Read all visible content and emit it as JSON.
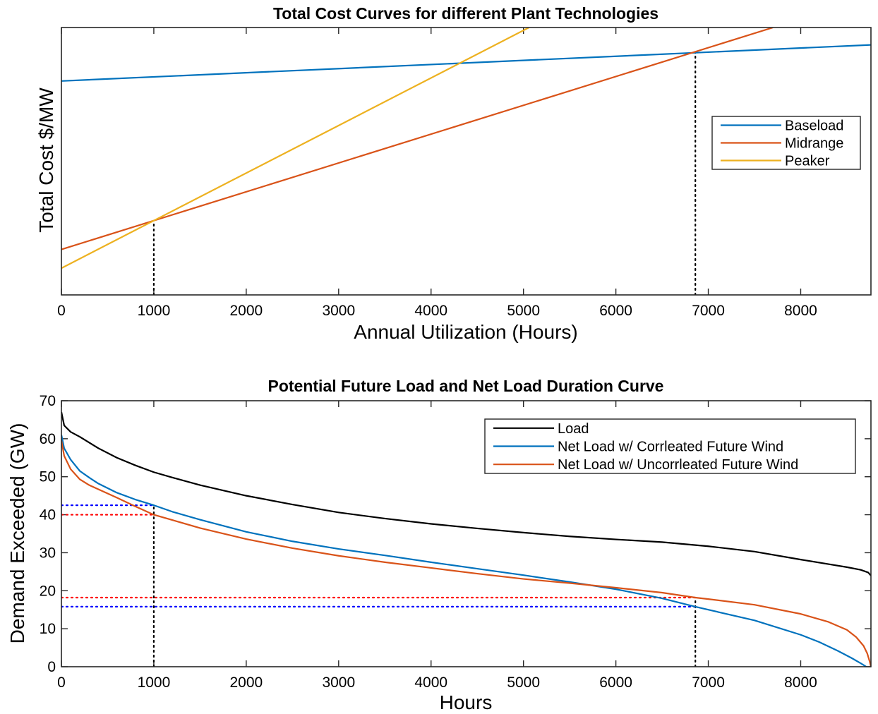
{
  "chart_data": [
    {
      "type": "line",
      "title": "Total Cost Curves for different Plant Technologies",
      "xlabel": "Annual Utilization (Hours)",
      "ylabel": "Total Cost $/MW",
      "xlim": [
        0,
        8760
      ],
      "ylim": [
        0,
        100
      ],
      "x_ticks": [
        0,
        1000,
        2000,
        3000,
        4000,
        5000,
        6000,
        7000,
        8000
      ],
      "y_ticks_labeled": false,
      "grid": false,
      "legend_position": "right-center",
      "series": [
        {
          "name": "Baseload",
          "color": "#0072BD",
          "x": [
            0,
            8760
          ],
          "y": [
            80,
            93.5
          ]
        },
        {
          "name": "Midrange",
          "color": "#D95319",
          "x": [
            0,
            7700
          ],
          "y": [
            17,
            100
          ]
        },
        {
          "name": "Peaker",
          "color": "#EDB120",
          "x": [
            0,
            5060
          ],
          "y": [
            10,
            100
          ]
        }
      ],
      "reference_lines": [
        {
          "style": "dotted",
          "color": "#000000",
          "x": [
            1000,
            1000
          ],
          "y": [
            0,
            27.7
          ]
        },
        {
          "style": "dotted",
          "color": "#000000",
          "x": [
            6860,
            6860
          ],
          "y": [
            0,
            90.6
          ]
        }
      ]
    },
    {
      "type": "line",
      "title": "Potential Future Load and Net Load Duration Curve",
      "xlabel": "Hours",
      "ylabel": "Demand Exceeded (GW)",
      "xlim": [
        0,
        8760
      ],
      "ylim": [
        0,
        70
      ],
      "x_ticks": [
        0,
        1000,
        2000,
        3000,
        4000,
        5000,
        6000,
        7000,
        8000
      ],
      "y_ticks": [
        0,
        10,
        20,
        30,
        40,
        50,
        60,
        70
      ],
      "grid": false,
      "legend_position": "top-right",
      "series": [
        {
          "name": "Load",
          "color": "#000000",
          "x": [
            0,
            30,
            100,
            200,
            400,
            600,
            800,
            1000,
            1200,
            1500,
            2000,
            2500,
            3000,
            3500,
            4000,
            4500,
            5000,
            5500,
            6000,
            6500,
            7000,
            7500,
            8000,
            8300,
            8500,
            8650,
            8730,
            8760
          ],
          "y": [
            67,
            63.5,
            61.8,
            60.5,
            57.5,
            55,
            53,
            51.2,
            49.8,
            47.8,
            45,
            42.7,
            40.6,
            39,
            37.6,
            36.4,
            35.3,
            34.3,
            33.5,
            32.8,
            31.7,
            30.3,
            28.2,
            27,
            26.2,
            25.5,
            24.8,
            24
          ]
        },
        {
          "name": "Net Load w/ Corrleated Future Wind",
          "color": "#0072BD",
          "x": [
            0,
            30,
            100,
            200,
            300,
            400,
            600,
            800,
            1000,
            1200,
            1500,
            2000,
            2500,
            3000,
            3500,
            4000,
            4500,
            5000,
            5500,
            6000,
            6500,
            6860,
            7000,
            7500,
            8000,
            8200,
            8400,
            8550,
            8650,
            8710
          ],
          "y": [
            61,
            57.5,
            54.5,
            51.5,
            49.8,
            48.2,
            45.8,
            44,
            42.5,
            40.8,
            38.7,
            35.5,
            33,
            31,
            29.3,
            27.5,
            25.8,
            24.1,
            22.3,
            20.4,
            18,
            15.8,
            15,
            12.2,
            8.4,
            6.5,
            4.2,
            2.3,
            0.9,
            0
          ]
        },
        {
          "name": "Net Load w/ Uncorrleated Future Wind",
          "color": "#D95319",
          "x": [
            0,
            30,
            100,
            200,
            300,
            400,
            600,
            800,
            1000,
            1200,
            1500,
            2000,
            2500,
            3000,
            3500,
            4000,
            4500,
            5000,
            5500,
            6000,
            6500,
            6860,
            7000,
            7500,
            8000,
            8300,
            8500,
            8600,
            8680,
            8720,
            8745,
            8760
          ],
          "y": [
            59.5,
            55.5,
            52,
            49.3,
            47.8,
            46.7,
            44.5,
            42.2,
            40,
            38.6,
            36.5,
            33.6,
            31.2,
            29.2,
            27.5,
            26,
            24.5,
            23.1,
            22,
            20.8,
            19.5,
            18.2,
            17.8,
            16.3,
            13.9,
            11.8,
            9.7,
            7.8,
            5.5,
            3.5,
            1.5,
            0
          ]
        }
      ],
      "reference_lines": [
        {
          "style": "dotted",
          "color": "#000000",
          "x": [
            1000,
            1000
          ],
          "y": [
            0,
            42.5
          ]
        },
        {
          "style": "dotted",
          "color": "#000000",
          "x": [
            6860,
            6860
          ],
          "y": [
            0,
            18.2
          ]
        },
        {
          "style": "dotted",
          "color": "#0000FF",
          "x": [
            0,
            1000
          ],
          "y": [
            42.5,
            42.5
          ]
        },
        {
          "style": "dotted",
          "color": "#FF0000",
          "x": [
            0,
            1000
          ],
          "y": [
            40,
            40
          ]
        },
        {
          "style": "dotted",
          "color": "#FF0000",
          "x": [
            0,
            6860
          ],
          "y": [
            18.2,
            18.2
          ]
        },
        {
          "style": "dotted",
          "color": "#0000FF",
          "x": [
            0,
            6860
          ],
          "y": [
            15.8,
            15.8
          ]
        }
      ]
    }
  ]
}
